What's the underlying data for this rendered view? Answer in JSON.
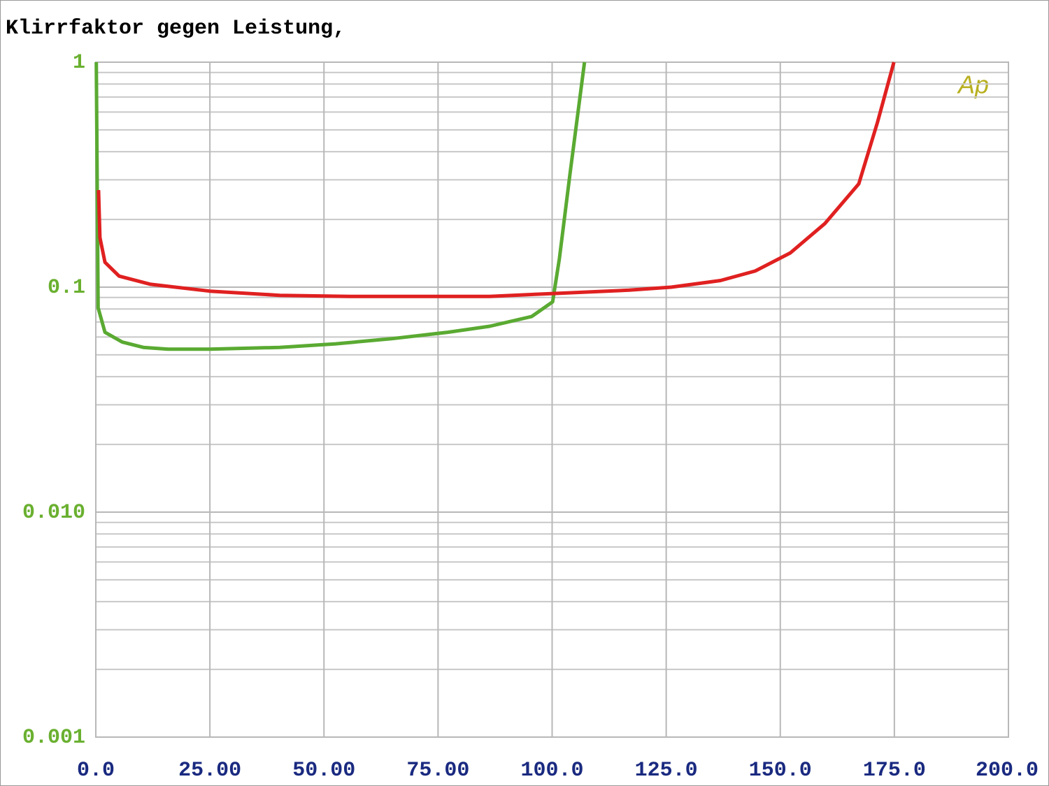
{
  "chart_data": {
    "type": "line",
    "title": "Klirrfaktor gegen Leistung,",
    "watermark": "Ap",
    "log_y": true,
    "grid": true,
    "xlim": [
      0,
      200
    ],
    "ylim": [
      0.001,
      1
    ],
    "xticks": [
      {
        "value": 0,
        "label": "0.0"
      },
      {
        "value": 25,
        "label": "25.00"
      },
      {
        "value": 50,
        "label": "50.00"
      },
      {
        "value": 75,
        "label": "75.00"
      },
      {
        "value": 100,
        "label": "100.0"
      },
      {
        "value": 125,
        "label": "125.0"
      },
      {
        "value": 150,
        "label": "150.0"
      },
      {
        "value": 175,
        "label": "175.0"
      },
      {
        "value": 200,
        "label": "200.0"
      }
    ],
    "yticks": [
      1,
      0.1,
      {
        "value": 0.01,
        "label": "0.010"
      },
      0.001
    ],
    "series": [
      {
        "color": "#5aaa32",
        "x": [
          0.1,
          0.5,
          2,
          5.8,
          10.4,
          15.8,
          25,
          40.3,
          52.6,
          64.8,
          77.1,
          86.3,
          95.5,
          100.1,
          101.6,
          103.9,
          107.1
        ],
        "values": [
          1,
          0.081,
          0.063,
          0.057,
          0.054,
          0.053,
          0.053,
          0.054,
          0.056,
          0.059,
          0.063,
          0.067,
          0.074,
          0.086,
          0.134,
          0.316,
          1
        ]
      },
      {
        "color": "#e02020",
        "x": [
          0.6,
          0.9,
          2,
          5.1,
          12,
          25,
          40.3,
          55.6,
          86.3,
          101.6,
          116.9,
          126.1,
          136.9,
          144.5,
          152.2,
          159.8,
          167.2,
          171.3,
          174.9
        ],
        "values": [
          0.27,
          0.166,
          0.129,
          0.112,
          0.103,
          0.096,
          0.092,
          0.091,
          0.091,
          0.094,
          0.097,
          0.1,
          0.107,
          0.118,
          0.142,
          0.192,
          0.288,
          0.54,
          1
        ]
      }
    ]
  }
}
